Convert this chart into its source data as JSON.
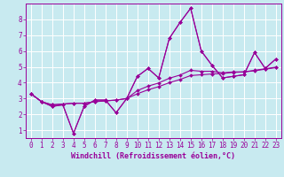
{
  "title": "",
  "xlabel": "Windchill (Refroidissement éolien,°C)",
  "ylabel": "",
  "bg_color": "#c8eaf0",
  "line_color": "#990099",
  "grid_color": "#ffffff",
  "xlim": [
    -0.5,
    23.5
  ],
  "ylim": [
    0.5,
    9.0
  ],
  "xticks": [
    0,
    1,
    2,
    3,
    4,
    5,
    6,
    7,
    8,
    9,
    10,
    11,
    12,
    13,
    14,
    15,
    16,
    17,
    18,
    19,
    20,
    21,
    22,
    23
  ],
  "yticks": [
    1,
    2,
    3,
    4,
    5,
    6,
    7,
    8
  ],
  "series": [
    [
      3.3,
      2.8,
      2.5,
      2.6,
      0.8,
      2.5,
      2.9,
      2.9,
      2.1,
      3.0,
      4.4,
      4.9,
      4.3,
      6.8,
      7.8,
      8.7,
      6.0,
      5.1,
      4.3,
      4.4,
      4.5,
      5.9,
      4.9,
      5.5
    ],
    [
      3.3,
      2.8,
      2.5,
      2.6,
      0.8,
      2.5,
      2.9,
      2.9,
      2.1,
      3.0,
      4.4,
      4.9,
      4.3,
      6.8,
      7.8,
      8.7,
      6.0,
      5.1,
      4.3,
      4.4,
      4.5,
      5.9,
      4.9,
      5.5
    ],
    [
      3.3,
      2.8,
      2.6,
      2.65,
      2.7,
      2.7,
      2.8,
      2.85,
      2.9,
      3.0,
      3.3,
      3.55,
      3.75,
      4.0,
      4.2,
      4.45,
      4.5,
      4.55,
      4.58,
      4.65,
      4.68,
      4.75,
      4.85,
      4.95
    ],
    [
      3.3,
      2.8,
      2.6,
      2.65,
      2.7,
      2.7,
      2.8,
      2.85,
      2.9,
      3.0,
      3.5,
      3.78,
      3.98,
      4.28,
      4.48,
      4.78,
      4.72,
      4.72,
      4.62,
      4.68,
      4.68,
      4.78,
      4.88,
      4.98
    ]
  ],
  "marker": "D",
  "markersize": 2.0,
  "linewidth": 0.8,
  "tick_labelsize": 5.5,
  "label_fontsize": 6.0,
  "label_fontweight": "bold"
}
